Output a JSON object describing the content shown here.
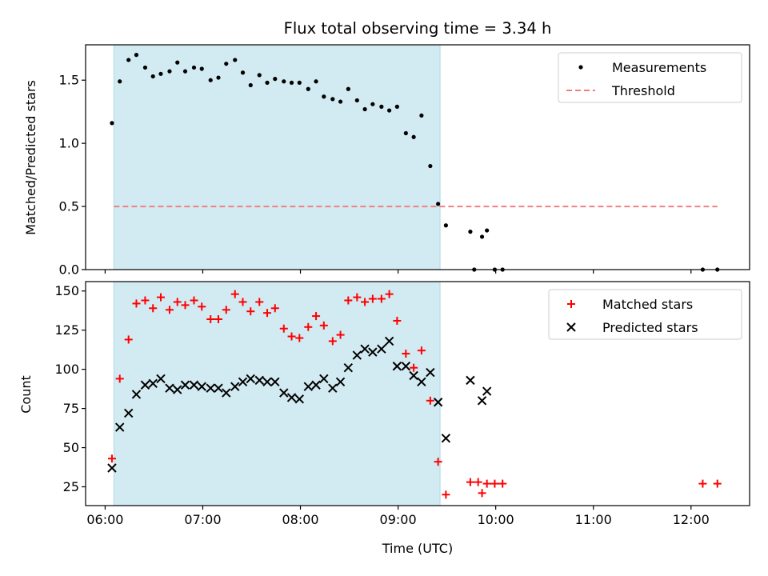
{
  "chart_data": {
    "type": "scatter",
    "title": "Flux total observing time = 3.34 h",
    "xlabel": "Time (UTC)",
    "x_ticks": [
      "06:00",
      "07:00",
      "08:00",
      "09:00",
      "10:00",
      "11:00",
      "12:00"
    ],
    "x_tick_hours": [
      6,
      7,
      8,
      9,
      10,
      11,
      12
    ],
    "xlim_hours": [
      5.8,
      12.6
    ],
    "observing_window_hours": [
      6.09,
      9.43
    ],
    "colors": {
      "window": "#add8e6",
      "measurements": "#000000",
      "threshold": "#f08080",
      "matched": "#ff0000",
      "predicted": "#000000"
    },
    "panels": [
      {
        "ylabel": "Matched/Predicted stars",
        "ylim": [
          0,
          1.78
        ],
        "y_ticks": [
          "0.0",
          "0.5",
          "1.0",
          "1.5"
        ],
        "y_tick_values": [
          0,
          0.5,
          1.0,
          1.5
        ],
        "legend": {
          "placement": "top-right",
          "entries": [
            "Measurements",
            "Threshold"
          ]
        },
        "threshold": {
          "name": "Threshold",
          "value": 0.5,
          "x_range": [
            6.09,
            12.27
          ]
        },
        "series": [
          {
            "name": "Measurements",
            "marker": "dot",
            "points": [
              [
                6.07,
                1.16
              ],
              [
                6.15,
                1.49
              ],
              [
                6.24,
                1.66
              ],
              [
                6.32,
                1.7
              ],
              [
                6.41,
                1.6
              ],
              [
                6.49,
                1.53
              ],
              [
                6.57,
                1.55
              ],
              [
                6.66,
                1.57
              ],
              [
                6.74,
                1.64
              ],
              [
                6.82,
                1.57
              ],
              [
                6.91,
                1.6
              ],
              [
                6.99,
                1.59
              ],
              [
                7.08,
                1.5
              ],
              [
                7.16,
                1.52
              ],
              [
                7.24,
                1.63
              ],
              [
                7.33,
                1.66
              ],
              [
                7.41,
                1.56
              ],
              [
                7.49,
                1.46
              ],
              [
                7.58,
                1.54
              ],
              [
                7.66,
                1.48
              ],
              [
                7.74,
                1.51
              ],
              [
                7.83,
                1.49
              ],
              [
                7.91,
                1.48
              ],
              [
                7.99,
                1.48
              ],
              [
                8.08,
                1.43
              ],
              [
                8.16,
                1.49
              ],
              [
                8.24,
                1.37
              ],
              [
                8.33,
                1.35
              ],
              [
                8.41,
                1.33
              ],
              [
                8.49,
                1.43
              ],
              [
                8.58,
                1.34
              ],
              [
                8.66,
                1.27
              ],
              [
                8.74,
                1.31
              ],
              [
                8.83,
                1.29
              ],
              [
                8.91,
                1.26
              ],
              [
                8.99,
                1.29
              ],
              [
                9.08,
                1.08
              ],
              [
                9.16,
                1.05
              ],
              [
                9.24,
                1.22
              ],
              [
                9.33,
                0.82
              ],
              [
                9.41,
                0.52
              ],
              [
                9.49,
                0.35
              ],
              [
                9.74,
                0.3
              ],
              [
                9.91,
                0.31
              ],
              [
                9.86,
                0.26
              ],
              [
                9.78,
                0.0
              ],
              [
                9.99,
                0.0
              ],
              [
                10.07,
                0.0
              ],
              [
                12.12,
                0.0
              ],
              [
                12.27,
                0.0
              ]
            ]
          }
        ]
      },
      {
        "ylabel": "Count",
        "ylim": [
          13,
          156
        ],
        "y_ticks": [
          "25",
          "50",
          "75",
          "100",
          "125",
          "150"
        ],
        "y_tick_values": [
          25,
          50,
          75,
          100,
          125,
          150
        ],
        "legend": {
          "placement": "top-right",
          "entries": [
            "Matched stars",
            "Predicted stars"
          ]
        },
        "series": [
          {
            "name": "Matched stars",
            "marker": "plus",
            "points": [
              [
                6.07,
                43
              ],
              [
                6.15,
                94
              ],
              [
                6.24,
                119
              ],
              [
                6.32,
                142
              ],
              [
                6.41,
                144
              ],
              [
                6.49,
                139
              ],
              [
                6.57,
                146
              ],
              [
                6.66,
                138
              ],
              [
                6.74,
                143
              ],
              [
                6.82,
                141
              ],
              [
                6.91,
                144
              ],
              [
                6.99,
                140
              ],
              [
                7.08,
                132
              ],
              [
                7.16,
                132
              ],
              [
                7.24,
                138
              ],
              [
                7.33,
                148
              ],
              [
                7.41,
                143
              ],
              [
                7.49,
                137
              ],
              [
                7.58,
                143
              ],
              [
                7.66,
                136
              ],
              [
                7.74,
                139
              ],
              [
                7.83,
                126
              ],
              [
                7.91,
                121
              ],
              [
                7.99,
                120
              ],
              [
                8.08,
                127
              ],
              [
                8.16,
                134
              ],
              [
                8.24,
                128
              ],
              [
                8.33,
                118
              ],
              [
                8.41,
                122
              ],
              [
                8.49,
                144
              ],
              [
                8.58,
                146
              ],
              [
                8.66,
                143
              ],
              [
                8.74,
                145
              ],
              [
                8.83,
                145
              ],
              [
                8.91,
                148
              ],
              [
                8.99,
                131
              ],
              [
                9.08,
                110
              ],
              [
                9.16,
                101
              ],
              [
                9.24,
                112
              ],
              [
                9.33,
                80
              ],
              [
                9.41,
                41
              ],
              [
                9.49,
                20
              ],
              [
                9.74,
                28
              ],
              [
                9.82,
                28
              ],
              [
                9.86,
                21
              ],
              [
                9.91,
                27
              ],
              [
                9.99,
                27
              ],
              [
                10.07,
                27
              ],
              [
                12.12,
                27
              ],
              [
                12.27,
                27
              ]
            ]
          },
          {
            "name": "Predicted stars",
            "marker": "x",
            "points": [
              [
                6.07,
                37
              ],
              [
                6.15,
                63
              ],
              [
                6.24,
                72
              ],
              [
                6.32,
                84
              ],
              [
                6.41,
                90
              ],
              [
                6.49,
                91
              ],
              [
                6.57,
                94
              ],
              [
                6.66,
                88
              ],
              [
                6.74,
                87
              ],
              [
                6.82,
                90
              ],
              [
                6.91,
                90
              ],
              [
                6.99,
                89
              ],
              [
                7.08,
                88
              ],
              [
                7.16,
                88
              ],
              [
                7.24,
                85
              ],
              [
                7.33,
                89
              ],
              [
                7.41,
                92
              ],
              [
                7.49,
                94
              ],
              [
                7.58,
                93
              ],
              [
                7.66,
                92
              ],
              [
                7.74,
                92
              ],
              [
                7.83,
                85
              ],
              [
                7.91,
                82
              ],
              [
                7.99,
                81
              ],
              [
                8.08,
                89
              ],
              [
                8.16,
                90
              ],
              [
                8.24,
                94
              ],
              [
                8.33,
                88
              ],
              [
                8.41,
                92
              ],
              [
                8.49,
                101
              ],
              [
                8.58,
                109
              ],
              [
                8.66,
                113
              ],
              [
                8.74,
                111
              ],
              [
                8.83,
                113
              ],
              [
                8.91,
                118
              ],
              [
                8.99,
                102
              ],
              [
                9.08,
                102
              ],
              [
                9.16,
                96
              ],
              [
                9.24,
                92
              ],
              [
                9.33,
                98
              ],
              [
                9.41,
                79
              ],
              [
                9.49,
                56
              ],
              [
                9.74,
                93
              ],
              [
                9.86,
                80
              ],
              [
                9.91,
                86
              ]
            ]
          }
        ]
      }
    ]
  }
}
